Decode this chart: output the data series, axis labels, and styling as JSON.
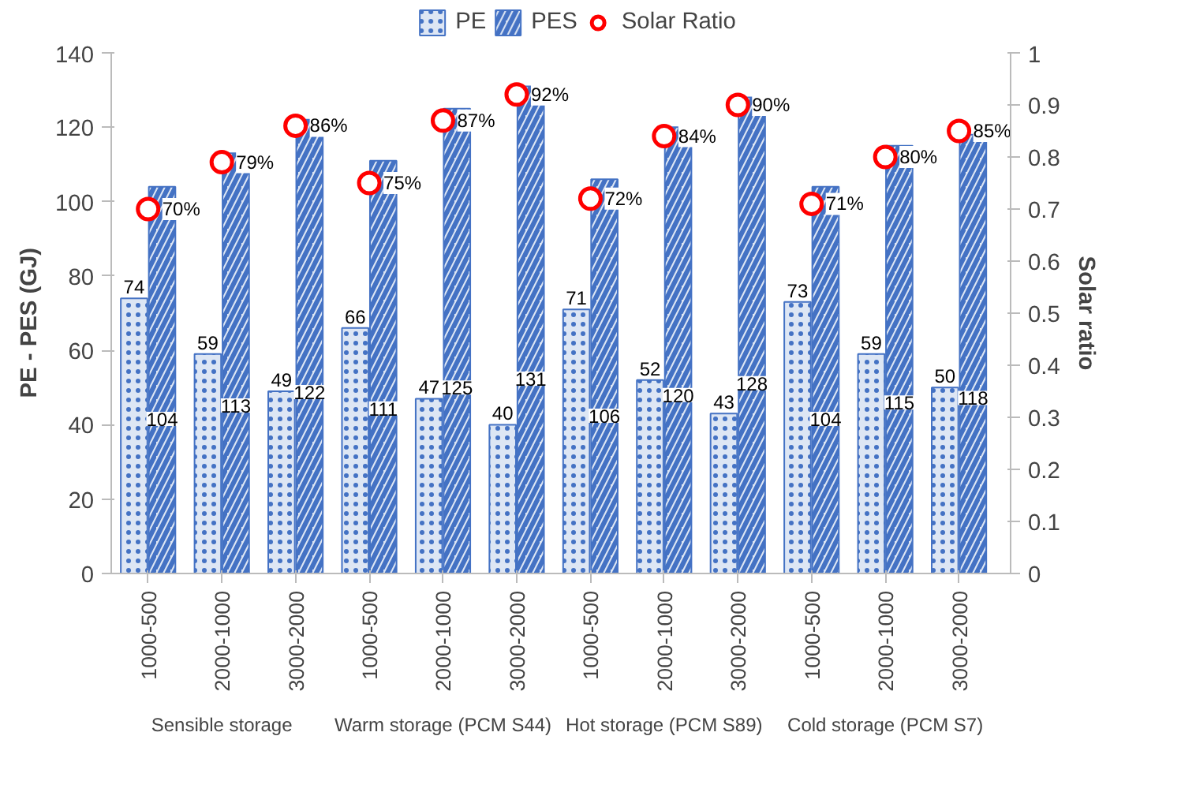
{
  "chart_data": {
    "type": "bar",
    "ylabel": "PE  -  PES  (GJ)",
    "y2label": "Solar ratio",
    "categories": [
      "1000-500",
      "2000-1000",
      "3000-2000",
      "1000-500",
      "2000-1000",
      "3000-2000",
      "1000-500",
      "2000-1000",
      "3000-2000",
      "1000-500",
      "2000-1000",
      "3000-2000"
    ],
    "series": [
      {
        "name": "PE",
        "color": "#4472c4",
        "values": [
          74,
          59,
          49,
          66,
          47,
          40,
          71,
          52,
          43,
          73,
          59,
          50
        ]
      },
      {
        "name": "PES",
        "color": "#4472c4",
        "values": [
          104,
          113,
          122,
          111,
          125,
          131,
          106,
          120,
          128,
          104,
          115,
          118
        ]
      },
      {
        "name": "Solar Ratio",
        "type": "scatter",
        "axis": "y2",
        "color": "#ff0000",
        "values": [
          0.7,
          0.79,
          0.86,
          0.75,
          0.87,
          0.92,
          0.72,
          0.84,
          0.9,
          0.71,
          0.8,
          0.85
        ],
        "value_labels": [
          "70%",
          "79%",
          "86%",
          "75%",
          "87%",
          "92%",
          "72%",
          "84%",
          "90%",
          "71%",
          "80%",
          "85%"
        ]
      }
    ],
    "ylim": [
      0,
      140
    ],
    "yticks": [
      0,
      20,
      40,
      60,
      80,
      100,
      120,
      140
    ],
    "y2lim": [
      0,
      1
    ],
    "y2ticks": [
      0,
      0.1,
      0.2,
      0.3,
      0.4,
      0.5,
      0.6,
      0.7,
      0.8,
      0.9,
      1
    ],
    "data_labels": true,
    "legend": "top",
    "marker": "circle",
    "annotations": [
      "Sensible storage",
      "Warm storage (PCM S44)",
      "Hot storage (PCM S89)",
      "Cold storage (PCM S7)"
    ]
  }
}
